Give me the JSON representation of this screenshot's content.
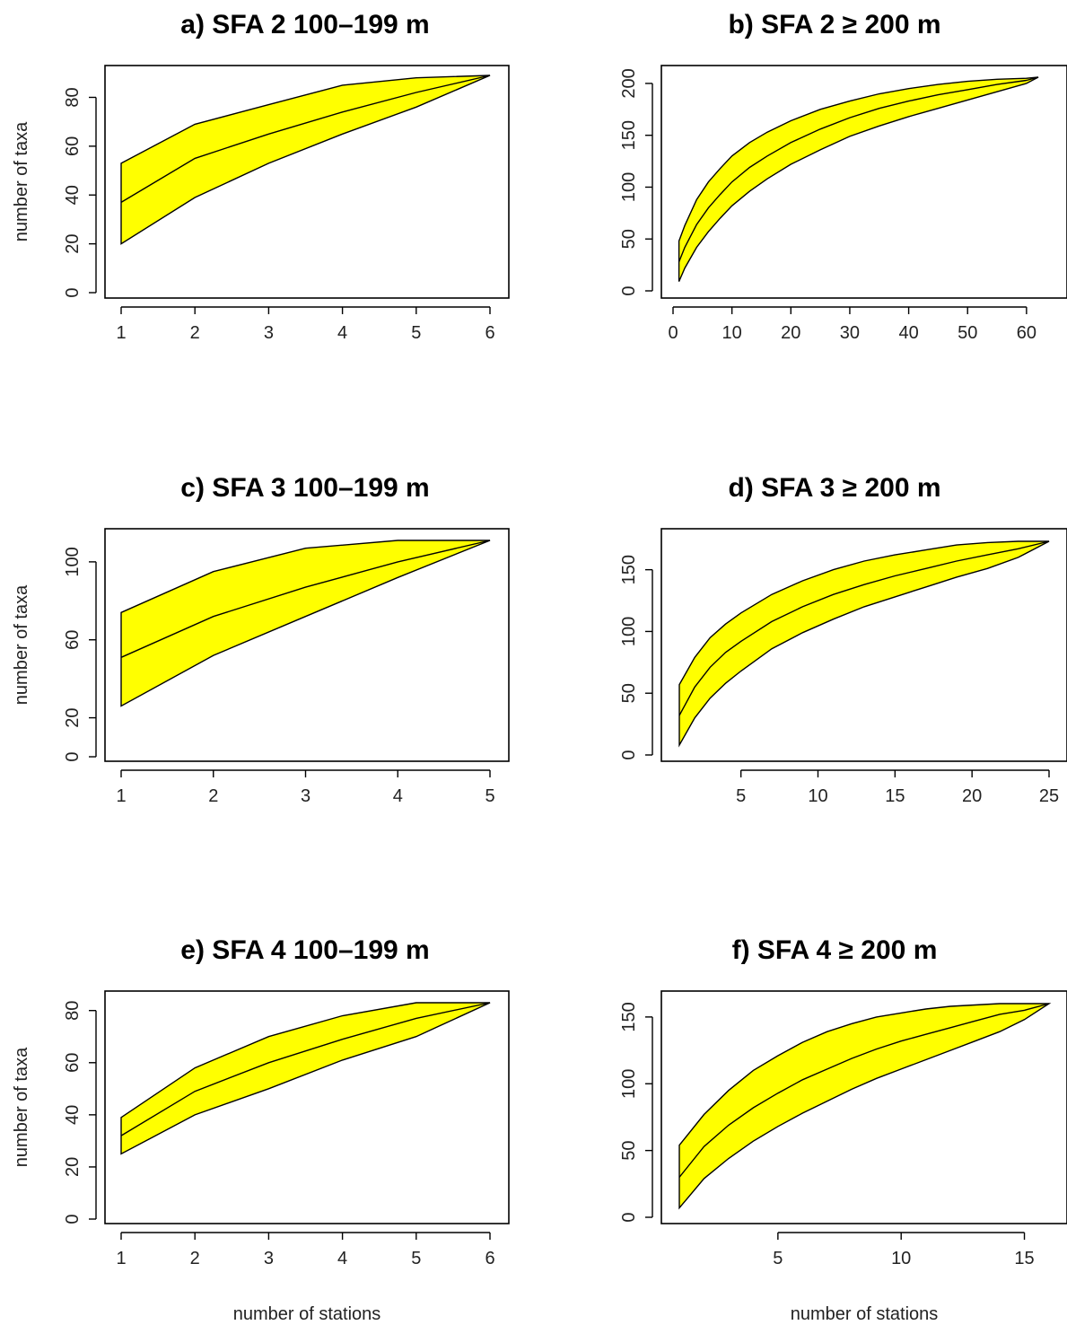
{
  "chart_data": [
    {
      "type": "area",
      "title": "a) SFA 2 100–199 m",
      "ylabel": "number of taxa",
      "xlabel": "",
      "xlim": [
        1,
        6
      ],
      "ylim": [
        0,
        89
      ],
      "xticks": [
        1,
        2,
        3,
        4,
        5,
        6
      ],
      "yticks": [
        0,
        20,
        40,
        60,
        80
      ],
      "fill_color": "#ffff00",
      "x": [
        1,
        2,
        3,
        4,
        5,
        6
      ],
      "series": [
        {
          "name": "",
          "role": "upper",
          "values": [
            53,
            69,
            77,
            85,
            88,
            89
          ]
        },
        {
          "name": "",
          "role": "mean",
          "values": [
            37,
            55,
            65,
            74,
            82,
            89
          ]
        },
        {
          "name": "",
          "role": "lower",
          "values": [
            20,
            39,
            53,
            65,
            76,
            89
          ]
        }
      ]
    },
    {
      "type": "area",
      "title": "b) SFA 2 ≥ 200 m",
      "ylabel": "",
      "xlabel": "",
      "xlim": [
        0,
        62
      ],
      "ylim": [
        0,
        206
      ],
      "xticks": [
        0,
        10,
        20,
        30,
        40,
        50,
        60
      ],
      "yticks": [
        0,
        50,
        100,
        150,
        200
      ],
      "fill_color": "#ffff00",
      "x": [
        1,
        2,
        4,
        6,
        8,
        10,
        13,
        16,
        20,
        25,
        30,
        35,
        40,
        45,
        50,
        55,
        60,
        62
      ],
      "series": [
        {
          "name": "",
          "role": "upper",
          "values": [
            48,
            63,
            88,
            105,
            118,
            130,
            143,
            153,
            164,
            175,
            183,
            190,
            195,
            199,
            202,
            204,
            205,
            206
          ]
        },
        {
          "name": "",
          "role": "mean",
          "values": [
            28,
            42,
            64,
            80,
            93,
            105,
            119,
            130,
            143,
            156,
            167,
            176,
            183,
            189,
            194,
            199,
            203,
            206
          ]
        },
        {
          "name": "",
          "role": "lower",
          "values": [
            9,
            22,
            42,
            57,
            70,
            82,
            96,
            108,
            122,
            136,
            149,
            159,
            168,
            176,
            184,
            192,
            200,
            206
          ]
        }
      ]
    },
    {
      "type": "area",
      "title": "c) SFA 3 100–199 m",
      "ylabel": "number of taxa",
      "xlabel": "",
      "xlim": [
        1,
        5
      ],
      "ylim": [
        0,
        111
      ],
      "xticks": [
        1,
        2,
        3,
        4,
        5
      ],
      "yticks": [
        0,
        20,
        60,
        100
      ],
      "fill_color": "#ffff00",
      "x": [
        1,
        2,
        3,
        4,
        5
      ],
      "series": [
        {
          "name": "",
          "role": "upper",
          "values": [
            74,
            95,
            107,
            111,
            111
          ]
        },
        {
          "name": "",
          "role": "mean",
          "values": [
            51,
            72,
            87,
            100,
            111
          ]
        },
        {
          "name": "",
          "role": "lower",
          "values": [
            26,
            52,
            72,
            92,
            111
          ]
        }
      ]
    },
    {
      "type": "area",
      "title": "d) SFA 3 ≥ 200 m",
      "ylabel": "",
      "xlabel": "",
      "xlim": [
        1,
        25
      ],
      "ylim": [
        0,
        173
      ],
      "xticks": [
        5,
        10,
        15,
        20,
        25
      ],
      "yticks": [
        0,
        50,
        100,
        150
      ],
      "fill_color": "#ffff00",
      "x": [
        1,
        2,
        3,
        4,
        5,
        7,
        9,
        11,
        13,
        15,
        17,
        19,
        21,
        23,
        25
      ],
      "series": [
        {
          "name": "",
          "role": "upper",
          "values": [
            57,
            79,
            95,
            106,
            115,
            130,
            141,
            150,
            157,
            162,
            166,
            170,
            172,
            173,
            173
          ]
        },
        {
          "name": "",
          "role": "mean",
          "values": [
            32,
            55,
            71,
            83,
            92,
            108,
            120,
            130,
            138,
            145,
            151,
            157,
            162,
            167,
            173
          ]
        },
        {
          "name": "",
          "role": "lower",
          "values": [
            8,
            30,
            46,
            58,
            68,
            86,
            99,
            110,
            120,
            128,
            136,
            144,
            151,
            160,
            173
          ]
        }
      ]
    },
    {
      "type": "area",
      "title": "e) SFA 4 100–199 m",
      "ylabel": "number of taxa",
      "xlabel": "number of stations",
      "xlim": [
        1,
        6
      ],
      "ylim": [
        0,
        83
      ],
      "xticks": [
        1,
        2,
        3,
        4,
        5,
        6
      ],
      "yticks": [
        0,
        20,
        40,
        60,
        80
      ],
      "fill_color": "#ffff00",
      "x": [
        1,
        2,
        3,
        4,
        5,
        6
      ],
      "series": [
        {
          "name": "",
          "role": "upper",
          "values": [
            39,
            58,
            70,
            78,
            83,
            83
          ]
        },
        {
          "name": "",
          "role": "mean",
          "values": [
            32,
            49,
            60,
            69,
            77,
            83
          ]
        },
        {
          "name": "",
          "role": "lower",
          "values": [
            25,
            40,
            50,
            61,
            70,
            83
          ]
        }
      ]
    },
    {
      "type": "area",
      "title": "f) SFA 4 ≥ 200 m",
      "ylabel": "",
      "xlabel": "number of stations",
      "xlim": [
        1,
        16
      ],
      "ylim": [
        0,
        160
      ],
      "xticks": [
        5,
        10,
        15
      ],
      "yticks": [
        0,
        50,
        100,
        150
      ],
      "fill_color": "#ffff00",
      "x": [
        1,
        2,
        3,
        4,
        5,
        6,
        7,
        8,
        9,
        10,
        11,
        12,
        13,
        14,
        15,
        16
      ],
      "series": [
        {
          "name": "",
          "role": "upper",
          "values": [
            54,
            77,
            95,
            110,
            121,
            131,
            139,
            145,
            150,
            153,
            156,
            158,
            159,
            160,
            160,
            160
          ]
        },
        {
          "name": "",
          "role": "mean",
          "values": [
            30,
            53,
            69,
            82,
            93,
            103,
            111,
            119,
            126,
            132,
            137,
            142,
            147,
            152,
            155,
            160
          ]
        },
        {
          "name": "",
          "role": "lower",
          "values": [
            7,
            29,
            44,
            57,
            68,
            78,
            87,
            96,
            104,
            111,
            118,
            125,
            132,
            139,
            148,
            160
          ]
        }
      ]
    }
  ]
}
